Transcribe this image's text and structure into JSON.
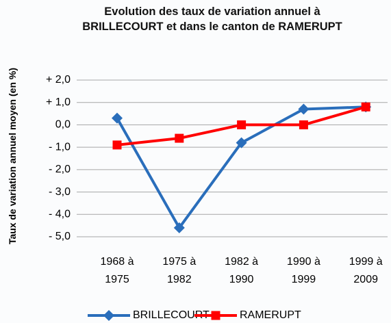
{
  "chart_data": {
    "type": "line",
    "title": "Evolution des taux de variation annuel à BRILLECOURT et dans le canton de RAMERUPT",
    "y_label": "Taux de variation annuel moyen (en %)",
    "categories": [
      "1968 à 1975",
      "1975 à 1982",
      "1982 à 1990",
      "1990 à 1999",
      "1999 à 2009"
    ],
    "series": [
      {
        "name": "BRILLECOURT",
        "color": "#2a6ebb",
        "marker": "diamond",
        "values": [
          0.3,
          -4.6,
          -0.8,
          0.7,
          0.8
        ]
      },
      {
        "name": "RAMERUPT",
        "color": "#ff0000",
        "marker": "square",
        "values": [
          -0.9,
          -0.6,
          0.0,
          0.0,
          0.8
        ]
      }
    ],
    "ylim": [
      -5,
      2
    ],
    "yticks": [
      {
        "value": -5,
        "label": "- 5,0"
      },
      {
        "value": -4,
        "label": "- 4,0"
      },
      {
        "value": -3,
        "label": "- 3,0"
      },
      {
        "value": -2,
        "label": "- 2,0"
      },
      {
        "value": -1,
        "label": "- 1,0"
      },
      {
        "value": 0,
        "label": "0,0"
      },
      {
        "value": 1,
        "label": "+ 1,0"
      },
      {
        "value": 2,
        "label": "+ 2,0"
      }
    ],
    "grid": true,
    "legend": "bottom"
  }
}
